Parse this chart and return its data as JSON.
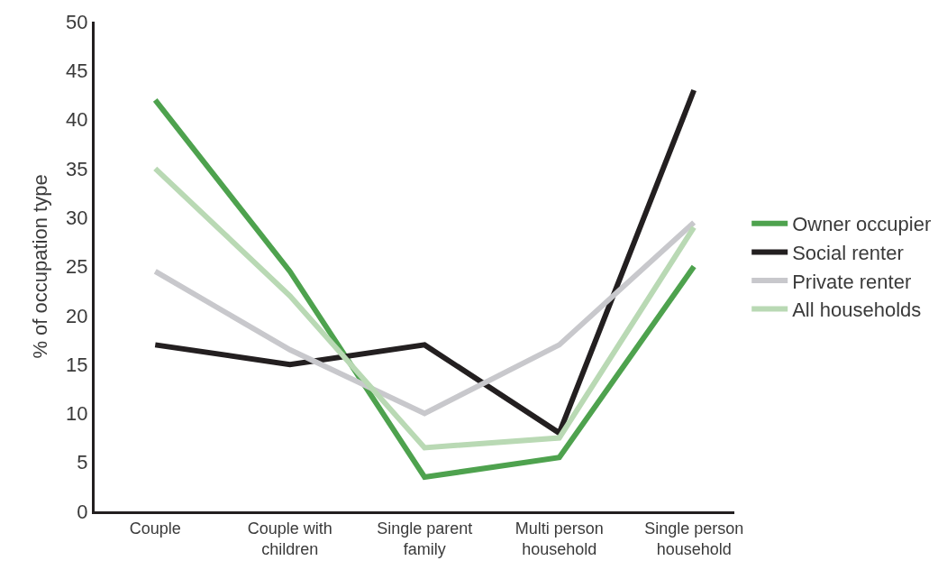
{
  "chart_data": {
    "type": "line",
    "ylabel": "% of occupation type",
    "categories": [
      "Couple",
      "Couple with children",
      "Single parent family",
      "Multi person household",
      "Single person household"
    ],
    "series": [
      {
        "name": "Owner occupier",
        "color": "#4ea24e",
        "values": [
          42,
          24.5,
          3.5,
          5.5,
          25
        ]
      },
      {
        "name": "Social renter",
        "color": "#231f20",
        "values": [
          17,
          15,
          17,
          8,
          43
        ]
      },
      {
        "name": "Private renter",
        "color": "#c8c8cc",
        "values": [
          24.5,
          16.5,
          10,
          17,
          29.5
        ]
      },
      {
        "name": "All households",
        "color": "#b9d9b4",
        "values": [
          35,
          22,
          6.5,
          7.5,
          29
        ]
      }
    ],
    "ylim": [
      0,
      50
    ],
    "yticks": [
      0,
      5,
      10,
      15,
      20,
      25,
      30,
      35,
      40,
      45,
      50
    ],
    "legend": "right",
    "marker": "none",
    "line_style": "solid"
  }
}
